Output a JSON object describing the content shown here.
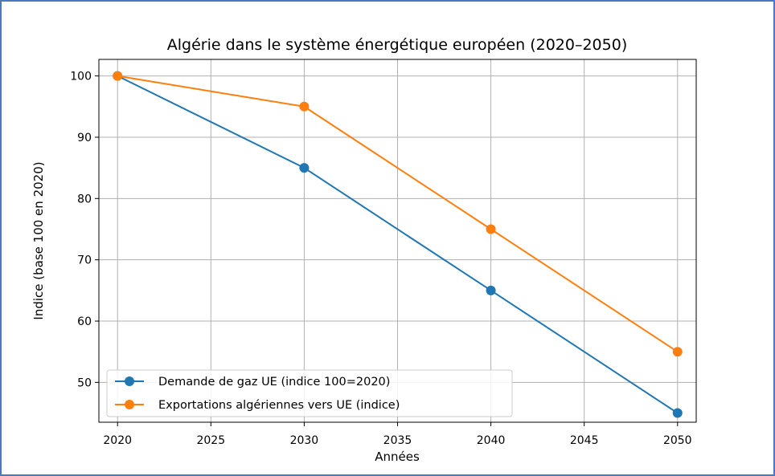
{
  "chart_data": {
    "type": "line",
    "title": "Algérie dans le système énergétique européen (2020–2050)",
    "xlabel": "Années",
    "ylabel": "Indice (base 100 en 2020)",
    "x": [
      2020,
      2030,
      2040,
      2050
    ],
    "xlim": [
      2019,
      2051
    ],
    "ylim": [
      43.5,
      102.7
    ],
    "xticks": [
      2020,
      2025,
      2030,
      2035,
      2040,
      2045,
      2050
    ],
    "yticks": [
      50,
      60,
      70,
      80,
      90,
      100
    ],
    "grid": true,
    "legend_position": "lower-left",
    "series": [
      {
        "name": "Demande de gaz UE (indice 100=2020)",
        "values": [
          100,
          85,
          65,
          45
        ],
        "color": "#1f77b4"
      },
      {
        "name": "Exportations algériennes vers UE (indice)",
        "values": [
          100,
          95,
          75,
          55
        ],
        "color": "#ff7f0e"
      }
    ]
  }
}
